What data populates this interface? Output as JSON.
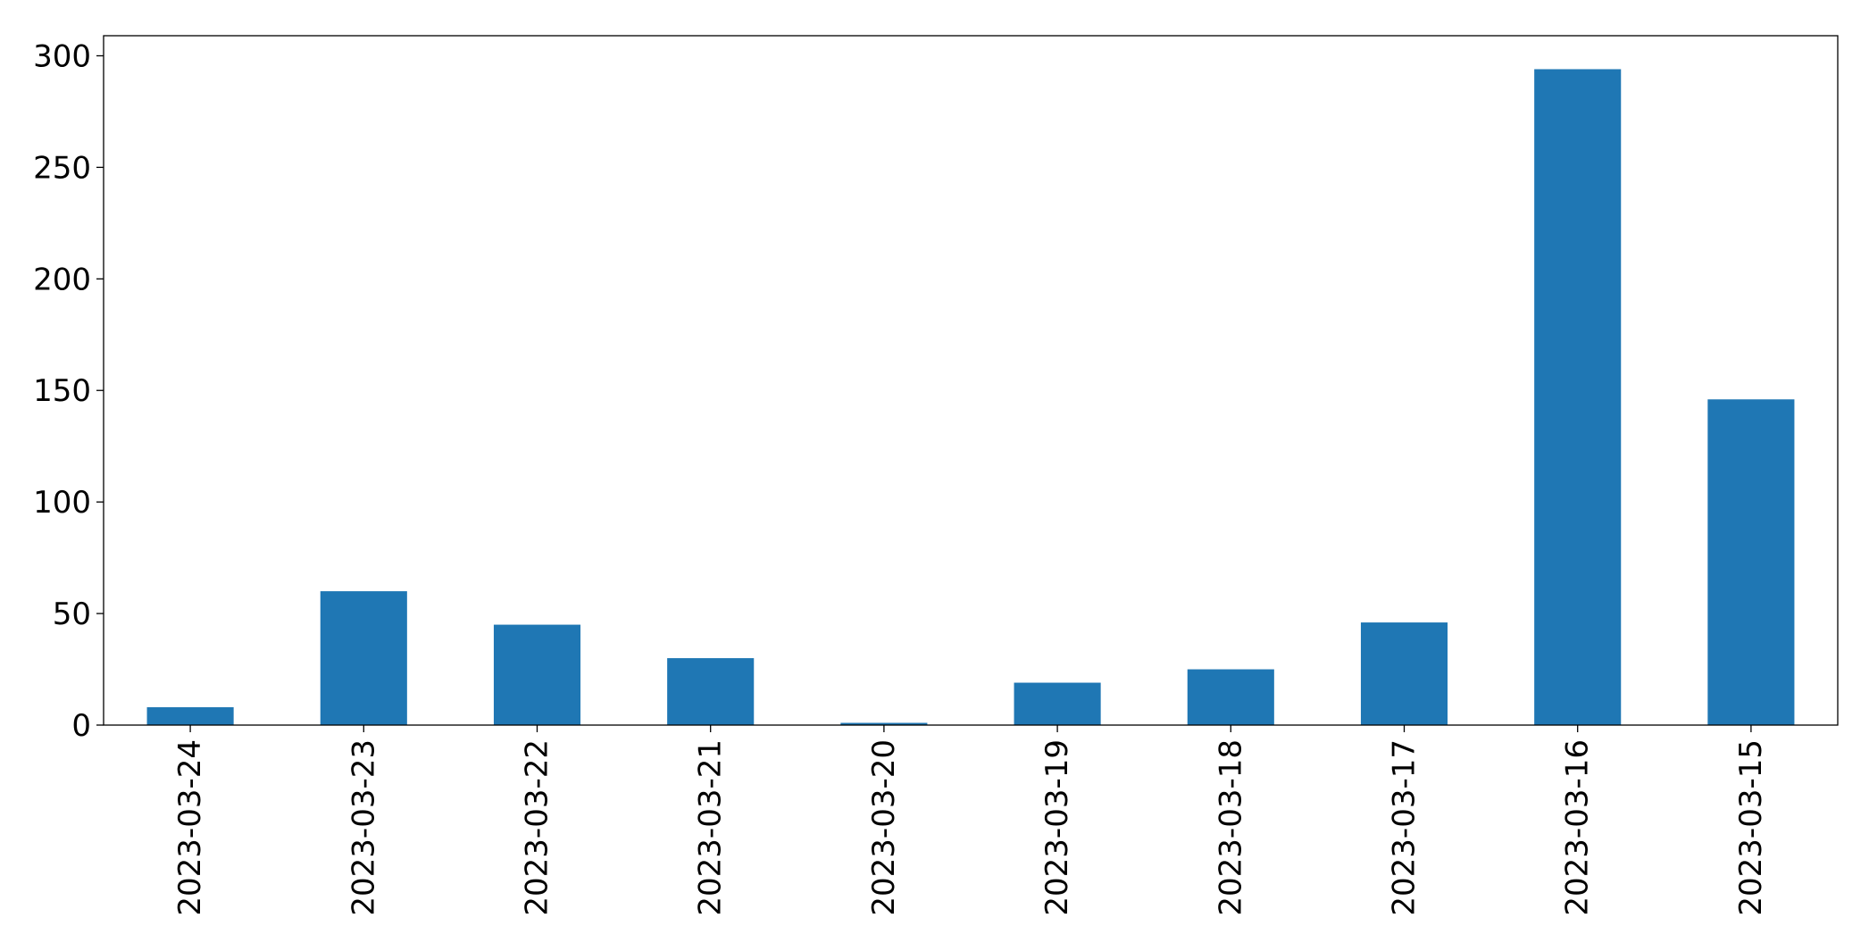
{
  "chart_data": {
    "type": "bar",
    "title": "",
    "xlabel": "",
    "ylabel": "",
    "categories": [
      "2023-03-24",
      "2023-03-23",
      "2023-03-22",
      "2023-03-21",
      "2023-03-20",
      "2023-03-19",
      "2023-03-18",
      "2023-03-17",
      "2023-03-16",
      "2023-03-15"
    ],
    "values": [
      8,
      60,
      45,
      30,
      1,
      19,
      25,
      46,
      294,
      146
    ],
    "ylim": [
      0,
      309
    ],
    "yticks": [
      0,
      50,
      100,
      150,
      200,
      250,
      300
    ],
    "ytick_labels": [
      "0",
      "50",
      "100",
      "150",
      "200",
      "250",
      "300"
    ],
    "bar_color": "#1f77b4",
    "grid": false,
    "legend": "none"
  }
}
